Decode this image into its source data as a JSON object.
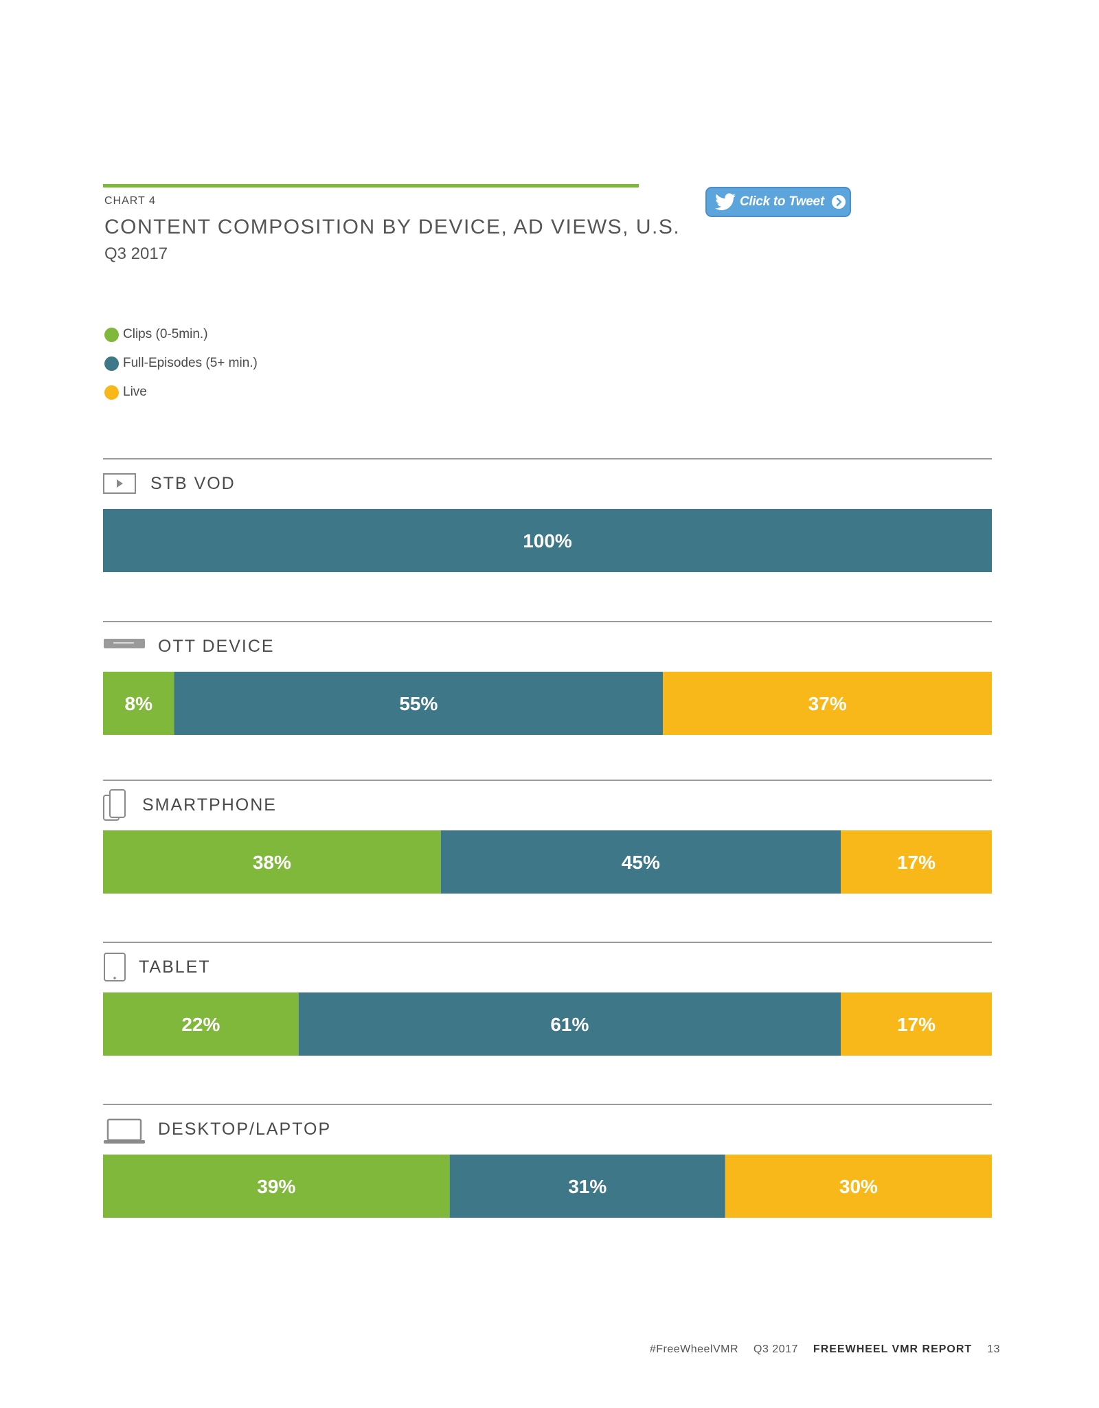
{
  "header": {
    "kicker": "CHART 4",
    "title": "CONTENT COMPOSITION BY DEVICE, AD VIEWS, U.S.",
    "subtitle": "Q3 2017"
  },
  "tweet_button": {
    "label": "Click to Tweet"
  },
  "colors": {
    "accent_rule": "#7db83a",
    "divider": "#9a9a9a"
  },
  "footer": {
    "hashtag": "#FreeWheelVMR",
    "period": "Q3 2017",
    "report": "FREEWHEEL VMR REPORT",
    "page": "13"
  },
  "chart_data": {
    "type": "bar",
    "orientation": "horizontal",
    "stacked": true,
    "unit": "%",
    "categories": [
      "STB VOD",
      "OTT DEVICE",
      "SMARTPHONE",
      "TABLET",
      "DESKTOP/LAPTOP"
    ],
    "category_icons": [
      "video-player-icon",
      "ott-box-icon",
      "smartphone-icon",
      "tablet-icon",
      "laptop-icon"
    ],
    "series": [
      {
        "name": "Clips (0-5min.)",
        "color": "#80b83c",
        "values": [
          0,
          8,
          38,
          22,
          39
        ]
      },
      {
        "name": "Full-Episodes (5+ min.)",
        "color": "#3e7788",
        "values": [
          100,
          55,
          45,
          61,
          31
        ]
      },
      {
        "name": "Live",
        "color": "#f9b81a",
        "values": [
          0,
          37,
          17,
          17,
          30
        ]
      }
    ],
    "xlim": [
      0,
      100
    ],
    "legend": "top-left",
    "grid": false
  }
}
